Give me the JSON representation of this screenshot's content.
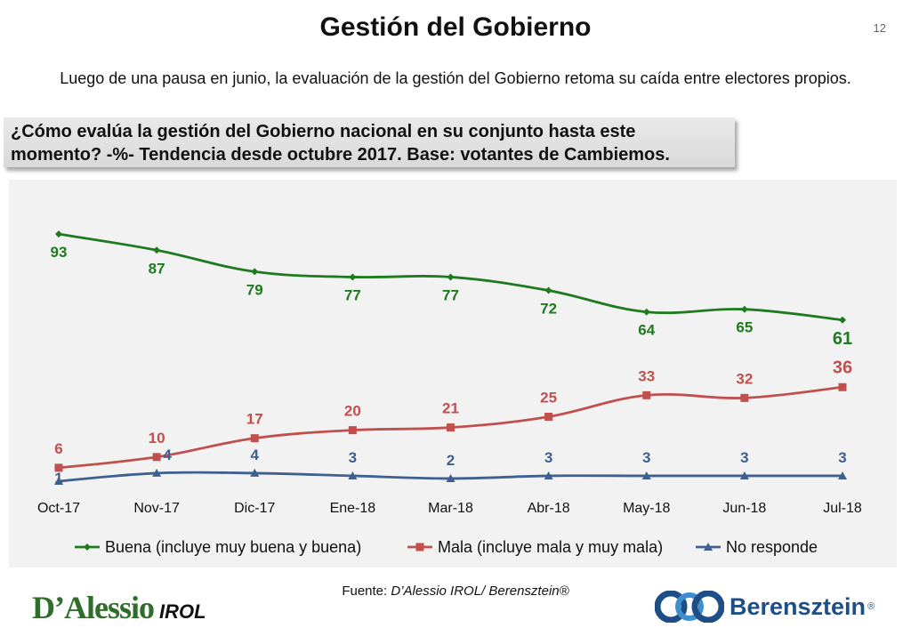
{
  "header": {
    "title": "Gestión del Gobierno",
    "page_number": "12",
    "subtitle": "Luego de una pausa en junio, la evaluación de la gestión del Gobierno retoma su caída entre electores propios.",
    "question_line1": "¿Cómo evalúa la gestión del Gobierno nacional en su conjunto hasta este",
    "question_line2": "momento? -%- Tendencia desde octubre 2017. Base: votantes de Cambiemos."
  },
  "chart_data": {
    "type": "line",
    "categories": [
      "Oct-17",
      "Nov-17",
      "Dic-17",
      "Ene-18",
      "Mar-18",
      "Abr-18",
      "May-18",
      "Jun-18",
      "Jul-18"
    ],
    "ylim": [
      0,
      100
    ],
    "grid": false,
    "legend_position": "bottom",
    "series": [
      {
        "name": "Buena (incluye muy buena y buena)",
        "color": "#1e7a1e",
        "marker": "diamond",
        "values": [
          93,
          87,
          79,
          77,
          77,
          72,
          64,
          65,
          61
        ]
      },
      {
        "name": "Mala (incluye mala y muy mala)",
        "color": "#c0504d",
        "marker": "square",
        "values": [
          6,
          10,
          17,
          20,
          21,
          25,
          33,
          32,
          36
        ]
      },
      {
        "name": "No responde",
        "color": "#3f5f8f",
        "marker": "triangle",
        "values": [
          1,
          4,
          4,
          3,
          2,
          3,
          3,
          3,
          3
        ]
      }
    ]
  },
  "footer": {
    "source_prefix": "Fuente: ",
    "source_text": "D’Alessio IROL/ Berensztein®",
    "logo_left_main": "D’Alessio",
    "logo_left_sub": "IROL",
    "logo_right_name": "Berensztein",
    "logo_right_reg": "®"
  }
}
